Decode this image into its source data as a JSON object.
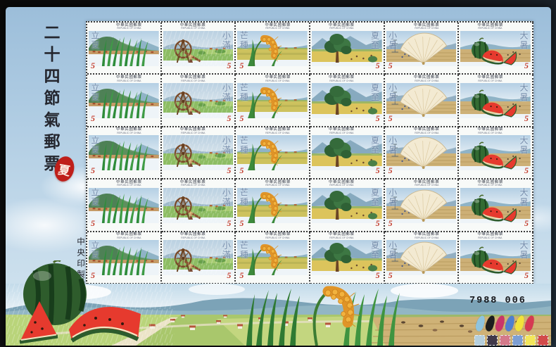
{
  "sheet": {
    "series_title": "二十四節氣郵票",
    "season_seal": "夏",
    "printer": "中央印製廠",
    "sheet_number": "7988 006",
    "rows": 5,
    "columns": 6,
    "stamp": {
      "country_cn": "中華民國郵票",
      "country_en": "REPUBLIC OF CHINA",
      "denomination": "5",
      "denomination_color": "#c23a2a"
    },
    "terms": [
      {
        "term": "立夏",
        "label_side": "left",
        "design": "rice-seedlings-green-mountain"
      },
      {
        "term": "小滿",
        "label_side": "right",
        "design": "wooden-waterwheel-in-rain"
      },
      {
        "term": "芒種",
        "label_side": "left",
        "design": "golden-rice-ear-over-fields"
      },
      {
        "term": "夏至",
        "label_side": "right",
        "design": "tree-with-golden-fields"
      },
      {
        "term": "小暑",
        "label_side": "left",
        "design": "folding-fan-dry-fields"
      },
      {
        "term": "大暑",
        "label_side": "right",
        "design": "watermelon-and-slices"
      }
    ],
    "color_check_marks": [
      "#8fc4dd",
      "#1d1d1d",
      "#c9356a",
      "#4f7fd0",
      "#f2e23a",
      "#d63a52"
    ],
    "color_check_swatches": [
      "#b5cfdd",
      "#40394a",
      "#d4798a",
      "#7d9fd4",
      "#f2e65a",
      "#d24a4a"
    ]
  }
}
